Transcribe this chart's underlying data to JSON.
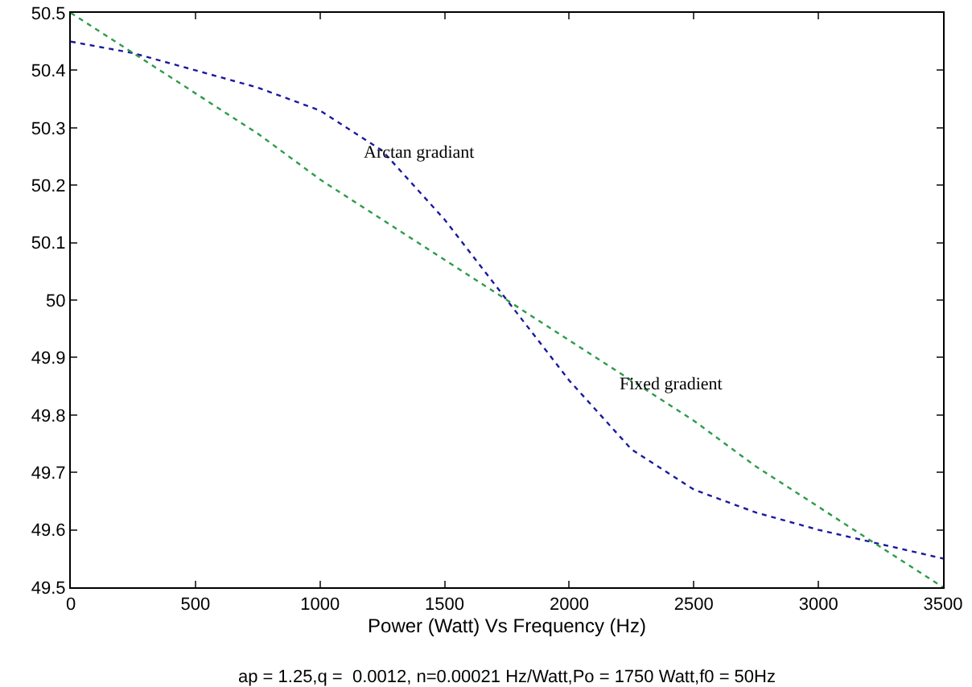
{
  "chart_data": {
    "type": "line",
    "xlabel": "Power (Watt) Vs Frequency (Hz)",
    "x": [
      0,
      250,
      500,
      750,
      1000,
      1250,
      1500,
      1750,
      2000,
      2250,
      2500,
      2750,
      3000,
      3250,
      3500
    ],
    "series": [
      {
        "color": "#1a1a9e",
        "values": [
          50.45,
          50.43,
          50.4,
          50.37,
          50.33,
          50.26,
          50.14,
          50.0,
          49.86,
          49.74,
          49.67,
          49.63,
          49.6,
          49.575,
          49.55
        ]
      },
      {
        "color": "#2e9a4a",
        "values": [
          50.5,
          50.43,
          50.36,
          50.29,
          50.21,
          50.14,
          50.07,
          50.0,
          49.93,
          49.86,
          49.79,
          49.71,
          49.64,
          49.57,
          49.5
        ]
      }
    ],
    "xlim": [
      0,
      3500
    ],
    "xticks": [
      0,
      500,
      1000,
      1500,
      2000,
      2500,
      3000,
      3500
    ],
    "ylim": [
      49.5,
      50.5
    ],
    "yticks": [
      49.5,
      49.6,
      49.7,
      49.8,
      49.9,
      50,
      50.1,
      50.2,
      50.3,
      50.4,
      50.5
    ],
    "grid": false,
    "line_style": "dotted",
    "marker": "none",
    "annotations": [
      "Arctan gradiant",
      "Fixed gradient",
      "ap = 1.25,q =  0.0012, n=0.00021 Hz/Watt,Po = 1750 Watt,f0 = 50Hz"
    ]
  }
}
